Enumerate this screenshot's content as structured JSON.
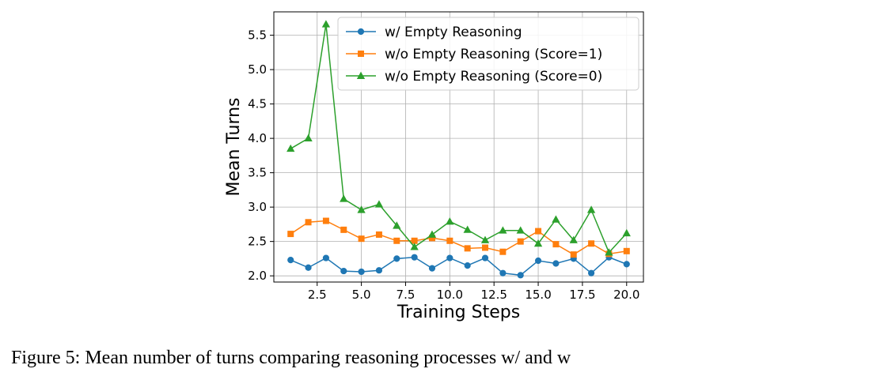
{
  "chart_data": {
    "type": "line",
    "title": "",
    "xlabel": "Training Steps",
    "ylabel": "Mean Turns",
    "xlim": [
      0.05,
      20.95
    ],
    "ylim": [
      1.91,
      5.84
    ],
    "xticks": [
      2.5,
      5.0,
      7.5,
      10.0,
      12.5,
      15.0,
      17.5,
      20.0
    ],
    "xtick_labels": [
      "2.5",
      "5.0",
      "7.5",
      "10.0",
      "12.5",
      "15.0",
      "17.5",
      "20.0"
    ],
    "yticks": [
      2.0,
      2.5,
      3.0,
      3.5,
      4.0,
      4.5,
      5.0,
      5.5
    ],
    "ytick_labels": [
      "2.0",
      "2.5",
      "3.0",
      "3.5",
      "4.0",
      "4.5",
      "5.0",
      "5.5"
    ],
    "grid": true,
    "legend_position": "top-right",
    "x": [
      1,
      2,
      3,
      4,
      5,
      6,
      7,
      8,
      9,
      10,
      11,
      12,
      13,
      14,
      15,
      16,
      17,
      18,
      19,
      20
    ],
    "series": [
      {
        "name": "w/ Empty Reasoning",
        "color": "#1f77b4",
        "marker": "circle",
        "values": [
          2.23,
          2.12,
          2.26,
          2.07,
          2.06,
          2.08,
          2.25,
          2.27,
          2.11,
          2.26,
          2.15,
          2.26,
          2.04,
          2.01,
          2.22,
          2.18,
          2.25,
          2.04,
          2.27,
          2.17
        ]
      },
      {
        "name": "w/o Empty Reasoning (Score=1)",
        "color": "#ff7f0e",
        "marker": "square",
        "values": [
          2.61,
          2.78,
          2.8,
          2.67,
          2.54,
          2.6,
          2.51,
          2.51,
          2.55,
          2.51,
          2.4,
          2.41,
          2.35,
          2.5,
          2.65,
          2.46,
          2.31,
          2.47,
          2.32,
          2.36
        ]
      },
      {
        "name": "w/o Empty Reasoning (Score=0)",
        "color": "#2ca02c",
        "marker": "triangle",
        "values": [
          3.85,
          4.0,
          5.66,
          3.12,
          2.96,
          3.04,
          2.73,
          2.42,
          2.6,
          2.79,
          2.67,
          2.52,
          2.66,
          2.66,
          2.47,
          2.82,
          2.52,
          2.96,
          2.34,
          2.62
        ]
      }
    ]
  },
  "caption": {
    "text": "Figure 5: Mean number of turns comparing reasoning processes w/ and w"
  }
}
